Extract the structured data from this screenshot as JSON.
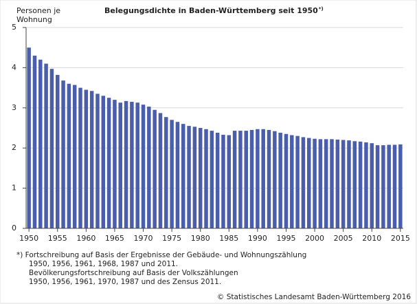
{
  "chart_data": {
    "type": "bar",
    "title": "Belegungsdichte in Baden-Württemberg seit 1950",
    "title_note": "*)",
    "ylabel": [
      "Personen je",
      "Wohnung"
    ],
    "categories": [
      "1950",
      null,
      null,
      null,
      null,
      "1955",
      null,
      null,
      null,
      null,
      "1960",
      null,
      null,
      null,
      null,
      "1965",
      null,
      null,
      null,
      null,
      "1970",
      null,
      null,
      null,
      null,
      "1975",
      null,
      null,
      null,
      null,
      "1980",
      null,
      null,
      null,
      null,
      "1985",
      null,
      null,
      null,
      null,
      "1990",
      null,
      null,
      null,
      null,
      "1995",
      null,
      null,
      null,
      null,
      "2000",
      null,
      null,
      null,
      null,
      "2005",
      null,
      null,
      null,
      null,
      "2010",
      null,
      null,
      null,
      null,
      "2015"
    ],
    "values": [
      4.5,
      4.3,
      4.2,
      4.1,
      3.97,
      3.82,
      3.68,
      3.6,
      3.57,
      3.5,
      3.45,
      3.42,
      3.35,
      3.3,
      3.25,
      3.2,
      3.13,
      3.17,
      3.15,
      3.13,
      3.08,
      3.03,
      2.95,
      2.87,
      2.77,
      2.7,
      2.65,
      2.6,
      2.55,
      2.53,
      2.5,
      2.47,
      2.43,
      2.38,
      2.33,
      2.32,
      2.43,
      2.43,
      2.43,
      2.45,
      2.47,
      2.47,
      2.45,
      2.42,
      2.38,
      2.35,
      2.32,
      2.3,
      2.27,
      2.25,
      2.23,
      2.22,
      2.22,
      2.22,
      2.21,
      2.2,
      2.19,
      2.17,
      2.16,
      2.14,
      2.12,
      2.07,
      2.07,
      2.08,
      2.08,
      2.09
    ],
    "color": "#4a5eac",
    "ylim": [
      0,
      5
    ],
    "yticks": [
      0,
      1,
      2,
      3,
      4,
      5
    ],
    "grid": true,
    "footnotes": [
      "*) Fortschreibung auf Basis der Ergebnisse  der Gebäude- und Wohnungszählung",
      "1950, 1956, 1961, 1968, 1987 und 2011.",
      "Bevölkerungsfortschreibung auf Basis der Volkszählungen",
      "1950, 1956, 1961, 1970, 1987 und des Zensus 2011."
    ],
    "source": "© Statistisches Landesamt Baden-Württemberg 2016"
  }
}
